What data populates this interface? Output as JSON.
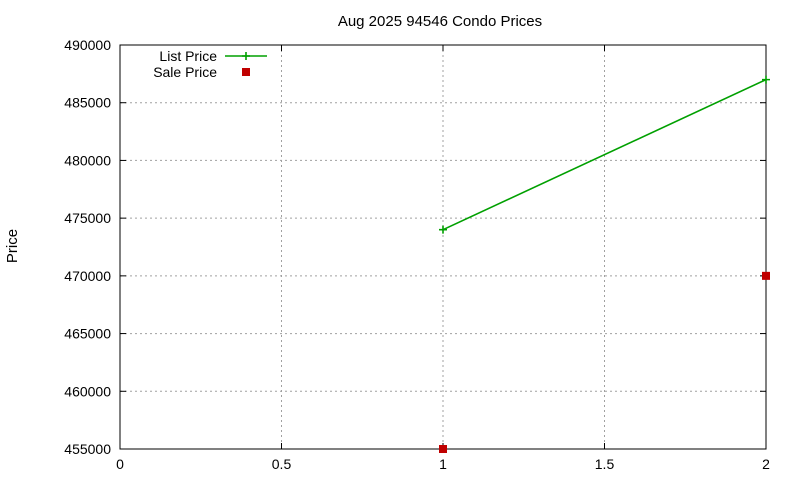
{
  "chart_data": {
    "type": "line",
    "title": "Aug 2025 94546 Condo Prices",
    "xlabel": "",
    "ylabel": "Price",
    "xlim": [
      0,
      2
    ],
    "ylim": [
      455000,
      490000
    ],
    "x_ticks": [
      0,
      0.5,
      1,
      1.5,
      2
    ],
    "x_tick_labels": [
      "0",
      "0.5",
      "1",
      "1.5",
      "2"
    ],
    "y_ticks": [
      455000,
      460000,
      465000,
      470000,
      475000,
      480000,
      485000,
      490000
    ],
    "y_tick_labels": [
      "455000",
      "460000",
      "465000",
      "470000",
      "475000",
      "480000",
      "485000",
      "490000"
    ],
    "grid": true,
    "legend_position": "top-left",
    "series": [
      {
        "name": "List Price",
        "style": "linespoints",
        "marker": "plus",
        "color": "#00a000",
        "x": [
          1,
          2
        ],
        "values": [
          474000,
          487000
        ]
      },
      {
        "name": "Sale Price",
        "style": "points",
        "marker": "square",
        "color": "#c00000",
        "x": [
          1,
          2
        ],
        "values": [
          455000,
          470000
        ]
      }
    ]
  }
}
